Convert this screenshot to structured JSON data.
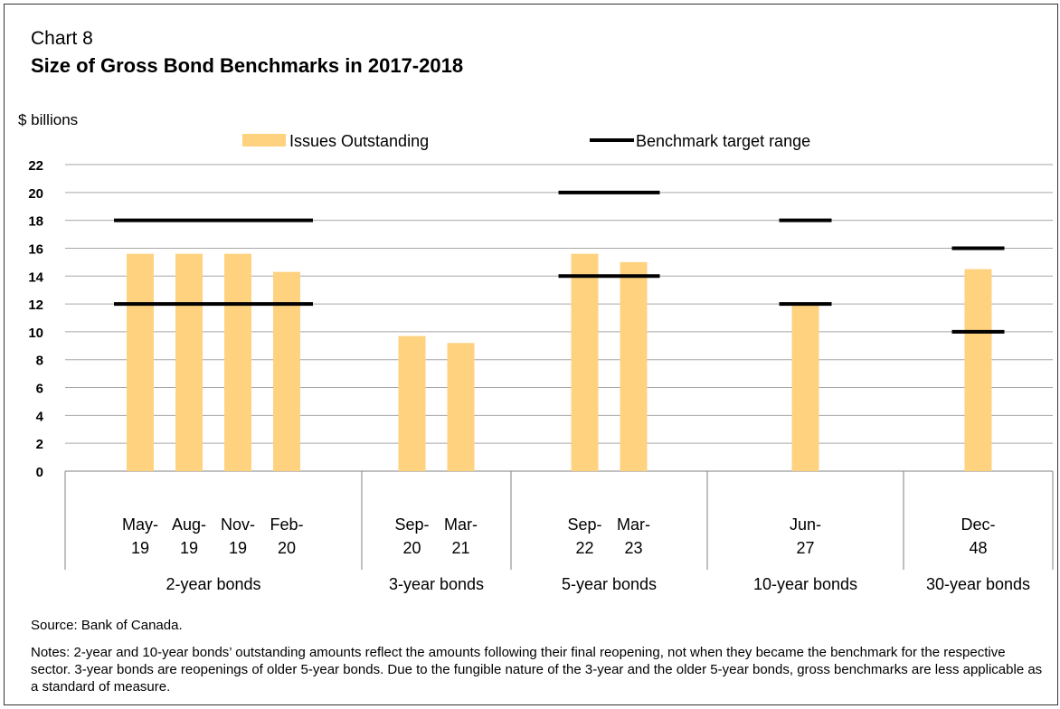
{
  "chart_label": "Chart 8",
  "chart_title": "Size of Gross Bond Benchmarks in 2017-2018",
  "source": "Source: Bank of Canada.",
  "notes": "Notes: 2-year and 10-year bonds’ outstanding amounts reflect the amounts following their final reopening, not when they became the benchmark for the respective sector. 3-year bonds are reopenings of older 5-year bonds. Due to the fungible nature of the 3-year and the older 5-year bonds, gross benchmarks are less applicable as a standard of measure.",
  "colors": {
    "bar": "#FFD27F",
    "target_line": "#000000",
    "grid": "#A6A6A6"
  },
  "chart_data": {
    "type": "bar",
    "ylabel": "$ billions",
    "ylim": [
      0,
      22
    ],
    "yticks": [
      "0",
      "2",
      "4",
      "6",
      "8",
      "10",
      "12",
      "14",
      "16",
      "18",
      "20",
      "22"
    ],
    "grid": true,
    "legend_position": "top",
    "legend": [
      "Issues Outstanding",
      "Benchmark target range"
    ],
    "groups": [
      {
        "label": "2-year bonds",
        "categories": [
          [
            "May-",
            "19"
          ],
          [
            "Aug-",
            "19"
          ],
          [
            "Nov-",
            "19"
          ],
          [
            "Feb-",
            "20"
          ]
        ],
        "values": [
          15.6,
          15.6,
          15.6,
          14.3
        ]
      },
      {
        "label": "3-year bonds",
        "categories": [
          [
            "Sep-",
            "20"
          ],
          [
            "Mar-",
            "21"
          ]
        ],
        "values": [
          9.7,
          9.2
        ]
      },
      {
        "label": "5-year bonds",
        "categories": [
          [
            "Sep-",
            "22"
          ],
          [
            "Mar-",
            "23"
          ]
        ],
        "values": [
          15.6,
          15.0
        ]
      },
      {
        "label": "10-year bonds",
        "categories": [
          [
            "Jun-",
            "27"
          ]
        ],
        "values": [
          12.0
        ]
      },
      {
        "label": "30-year bonds",
        "categories": [
          [
            "Dec-",
            "48"
          ]
        ],
        "values": [
          14.5
        ]
      }
    ],
    "target_ranges": [
      {
        "group": "2-year bonds",
        "low": 12,
        "high": 18
      },
      {
        "group": "5-year bonds",
        "low": 14,
        "high": 20
      },
      {
        "group": "10-year bonds",
        "low": 12,
        "high": 18
      },
      {
        "group": "30-year bonds",
        "low": 10,
        "high": 16
      }
    ]
  }
}
